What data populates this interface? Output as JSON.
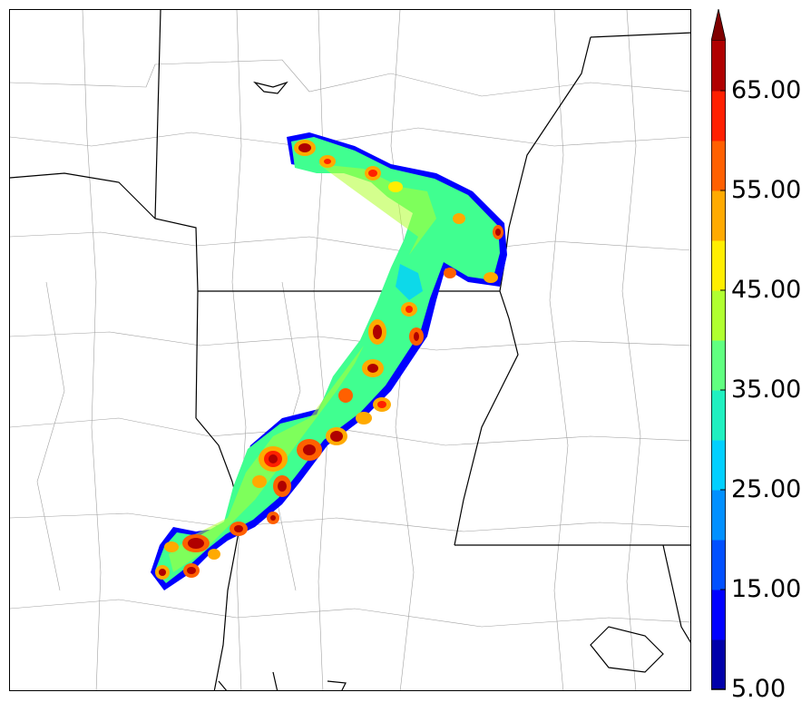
{
  "map": {
    "field": "reflectivity-swath",
    "background": "#ffffff",
    "border_color": "#000000",
    "county_line_color": "#999999",
    "state_line_color": "#000000"
  },
  "colorbar": {
    "levels": [
      5,
      10,
      15,
      20,
      25,
      30,
      35,
      40,
      45,
      50,
      55,
      60,
      65,
      70
    ],
    "colors": [
      "#0000aa",
      "#0000ff",
      "#0050ff",
      "#0090ff",
      "#00d0ff",
      "#20f0c0",
      "#60ff80",
      "#b0ff30",
      "#ffee00",
      "#ffaa00",
      "#ff6000",
      "#ff2000",
      "#b00000"
    ],
    "extend_color": "#800000",
    "tick_labels": [
      "5.00",
      "15.00",
      "25.00",
      "35.00",
      "45.00",
      "55.00",
      "65.00"
    ]
  }
}
